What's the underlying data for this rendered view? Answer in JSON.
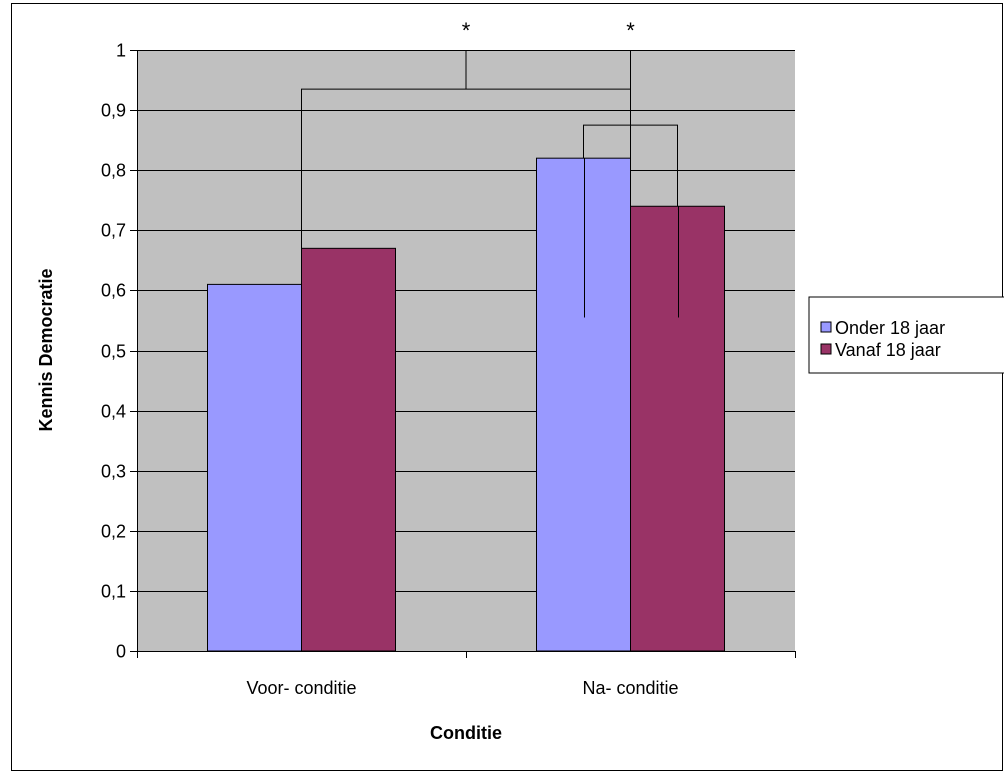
{
  "chart_data": {
    "type": "bar",
    "title": "",
    "xlabel": "Conditie",
    "ylabel": "Kennis Democratie",
    "categories": [
      "Voor- conditie",
      "Na- conditie"
    ],
    "series": [
      {
        "name": "Onder 18 jaar",
        "values": [
          0.61,
          0.82
        ],
        "color": "#9999ff"
      },
      {
        "name": "Vanaf 18 jaar",
        "values": [
          0.67,
          0.74
        ],
        "color": "#993366"
      }
    ],
    "ylim": [
      0,
      1
    ],
    "yticks": [
      "0",
      "0,1",
      "0,2",
      "0,3",
      "0,4",
      "0,5",
      "0,6",
      "0,7",
      "0,8",
      "0,9",
      "1"
    ],
    "grid": true,
    "plot_background": "#c0c0c0",
    "legend_position": "right",
    "error_bars": [
      {
        "category": "Na- conditie",
        "series": "Onder 18 jaar",
        "low": 0.555
      },
      {
        "category": "Na- conditie",
        "series": "Vanaf 18 jaar",
        "low": 0.555
      }
    ],
    "significance": [
      {
        "label": "*",
        "between": "Voor- conditie vs Na- conditie"
      },
      {
        "label": "*",
        "between": "Onder 18 jaar vs Vanaf 18 jaar (Na- conditie)"
      }
    ]
  }
}
